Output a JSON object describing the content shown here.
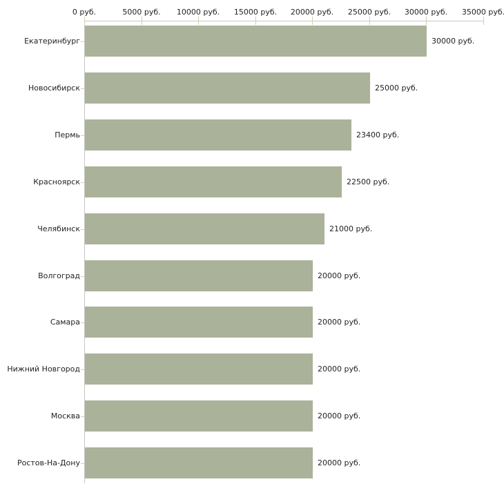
{
  "chart_data": {
    "type": "bar",
    "orientation": "horizontal",
    "title": "",
    "xlabel": "",
    "ylabel": "",
    "categories": [
      "Екатеринбург",
      "Новосибирск",
      "Пермь",
      "Красноярск",
      "Челябинск",
      "Волгоград",
      "Самара",
      "Нижний Новгород",
      "Москва",
      "Ростов-На-Дону"
    ],
    "values": [
      30000,
      25000,
      23400,
      22500,
      21000,
      20000,
      20000,
      20000,
      20000,
      20000
    ],
    "value_labels": [
      "30000 руб.",
      "25000 руб.",
      "23400 руб.",
      "22500 руб.",
      "21000 руб.",
      "20000 руб.",
      "20000 руб.",
      "20000 руб.",
      "20000 руб.",
      "20000 руб."
    ],
    "xlim": [
      0,
      35000
    ],
    "x_ticks": [
      0,
      5000,
      10000,
      15000,
      20000,
      25000,
      30000,
      35000
    ],
    "x_tick_labels": [
      "0 руб.",
      "5000 руб.",
      "10000 руб.",
      "15000 руб.",
      "20000 руб.",
      "25000 руб.",
      "30000 руб.",
      "35000 руб."
    ],
    "grid": false,
    "legend": false,
    "colors": {
      "bar": "#abb29a",
      "axis_line": "#c6c6c6",
      "tick_mark": "#cdd0b0",
      "text": "#222222",
      "background": "#ffffff"
    }
  }
}
